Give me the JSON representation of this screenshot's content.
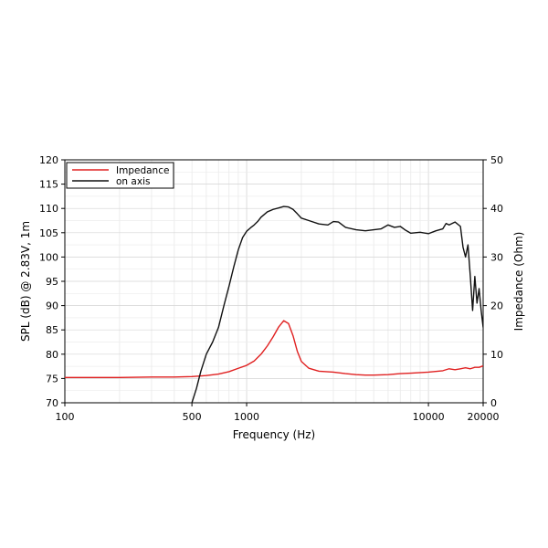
{
  "chart_data": {
    "type": "line",
    "xlabel": "Frequency (Hz)",
    "ylabel_left": "SPL (dB) @ 2.83V, 1m",
    "ylabel_right": "Impedance (Ohm)",
    "x_scale": "log",
    "xlim": [
      100,
      20000
    ],
    "ylim_left": [
      70,
      120
    ],
    "ylim_right": [
      0,
      50
    ],
    "x_ticks": [
      100,
      500,
      1000,
      10000,
      20000
    ],
    "x_tick_labels": [
      "100",
      "500",
      "1000",
      "10000",
      "20000"
    ],
    "y_ticks_left": [
      70,
      75,
      80,
      85,
      90,
      95,
      100,
      105,
      110,
      115,
      120
    ],
    "y_tick_labels_left": [
      "70",
      "75",
      "80",
      "85",
      "90",
      "95",
      "100",
      "105",
      "110",
      "115",
      "120"
    ],
    "y_ticks_right": [
      0,
      10,
      20,
      30,
      40,
      50
    ],
    "y_tick_labels_right": [
      "0",
      "10",
      "20",
      "30",
      "40",
      "50"
    ],
    "grid": true,
    "legend_position": "top-left",
    "series": [
      {
        "name": "Impedance",
        "axis": "right",
        "color": "#e02020",
        "x": [
          100,
          200,
          300,
          400,
          500,
          600,
          700,
          800,
          900,
          1000,
          1100,
          1200,
          1300,
          1400,
          1500,
          1600,
          1700,
          1800,
          1900,
          2000,
          2200,
          2500,
          3000,
          3500,
          4000,
          4500,
          5000,
          6000,
          7000,
          8000,
          10000,
          12000,
          13000,
          14000,
          15000,
          16000,
          17000,
          18000,
          19000,
          20000
        ],
        "y": [
          5.2,
          5.2,
          5.3,
          5.3,
          5.4,
          5.6,
          5.9,
          6.4,
          7.1,
          7.7,
          8.6,
          10.0,
          11.7,
          13.6,
          15.6,
          16.9,
          16.3,
          13.8,
          10.6,
          8.5,
          7.1,
          6.5,
          6.3,
          6.0,
          5.8,
          5.7,
          5.7,
          5.8,
          6.0,
          6.1,
          6.3,
          6.6,
          7.0,
          6.8,
          7.0,
          7.2,
          7.0,
          7.3,
          7.3,
          7.6
        ]
      },
      {
        "name": "on axis",
        "axis": "left",
        "color": "#111111",
        "x": [
          500,
          530,
          560,
          600,
          650,
          700,
          750,
          800,
          850,
          900,
          950,
          1000,
          1050,
          1100,
          1150,
          1200,
          1300,
          1400,
          1500,
          1600,
          1700,
          1800,
          1900,
          2000,
          2200,
          2500,
          2800,
          3000,
          3200,
          3500,
          4000,
          4500,
          5000,
          5500,
          6000,
          6500,
          7000,
          7500,
          8000,
          9000,
          10000,
          11000,
          12000,
          12500,
          13000,
          14000,
          15000,
          15500,
          16000,
          16500,
          17000,
          17500,
          18000,
          18500,
          19000,
          19500,
          20000
        ],
        "y": [
          70.0,
          73.0,
          76.5,
          80.0,
          82.5,
          85.5,
          90.0,
          94.0,
          98.0,
          101.5,
          104.0,
          105.3,
          106.0,
          106.6,
          107.3,
          108.2,
          109.3,
          109.8,
          110.1,
          110.4,
          110.3,
          109.8,
          108.9,
          108.0,
          107.5,
          106.8,
          106.6,
          107.3,
          107.2,
          106.1,
          105.6,
          105.4,
          105.6,
          105.8,
          106.6,
          106.1,
          106.3,
          105.5,
          104.9,
          105.1,
          104.8,
          105.4,
          105.8,
          106.9,
          106.6,
          107.2,
          106.3,
          102.0,
          100.0,
          102.5,
          96.0,
          89.0,
          96.0,
          90.5,
          93.5,
          89.0,
          85.5
        ]
      }
    ]
  }
}
